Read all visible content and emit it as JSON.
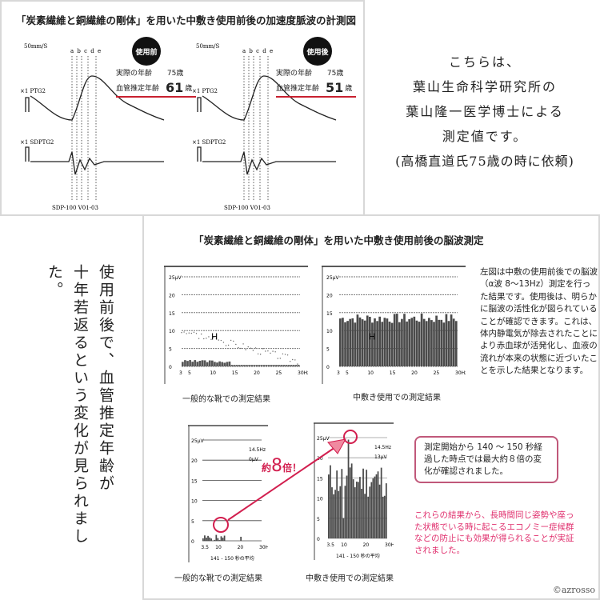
{
  "pulse": {
    "title": "「炭素繊維と銅繊維の剛体」を用いた中敷き使用前後の加速度脈波の計測図",
    "speed": "50mm/S",
    "wave_letters": "a b c d e",
    "ptg_label": "×1   PTG2",
    "sdptg_label": "×1   SDPTG2",
    "footer": "SDP-100    V01-03",
    "before": {
      "badge": "使用前",
      "real_age_label": "実際の年齢",
      "real_age": "75歳",
      "vessel_age_label": "血管推定年齢",
      "vessel_age": "61",
      "unit": "歳"
    },
    "after": {
      "badge": "使用後",
      "real_age_label": "実際の年齢",
      "real_age": "75歳",
      "vessel_age_label": "血管推定年齢",
      "vessel_age": "51",
      "unit": "歳"
    }
  },
  "intro": [
    "こちらは、",
    "葉山生命科学研究所の",
    "葉山隆一医学博士による",
    "測定値です。",
    "(高橋直道氏75歳の時に依頼)"
  ],
  "vertical": [
    "使用前後で、血管推定年齢が",
    "十年若返るという変化が見られました。"
  ],
  "eeg": {
    "title": "「炭素繊維と銅繊維の剛体」を用いた中敷き使用前後の脳波測定",
    "y_ticks": [
      "25μV",
      "20",
      "15",
      "10",
      "5",
      "0"
    ],
    "x_ticks_top": [
      "3",
      "5",
      "10",
      "15",
      "20",
      "25",
      "30Hz"
    ],
    "x_ticks_bottom": [
      "3.5",
      "10",
      "20",
      "30Hz"
    ],
    "caption_normal": "一般的な靴での測定結果",
    "caption_insole": "中敷き使用での測定結果",
    "avg_label": "141 - 150 秒の平均",
    "normal_readout": [
      "14.5Hz",
      "0μV"
    ],
    "insole_readout": [
      "14.5Hz",
      "13μV"
    ],
    "times_prefix": "約",
    "times_num": "8",
    "times_suffix": "倍！",
    "accent": "#d21f4f"
  },
  "description": "左図は中敷の使用前後での脳波（α波 8〜13Hz）測定を行った結果です。使用後は、明らかに脳波の活性化が図られていることが確認できます。これは、体内静電気が除去されたことにより赤血球が活発化し、血液の流れが本来の状態に近づいたことを示した結果となります。",
  "note": "測定開始から 140 〜 150 秒経過した時点では最大約８倍の変化が確認されました。",
  "conclusion": "これらの結果から、長時間同じ姿勢や座った状態でいる時に起こるエコノミー症候群などの防止にも効果が得られることが実証されました。",
  "copyright": "©azrosso"
}
